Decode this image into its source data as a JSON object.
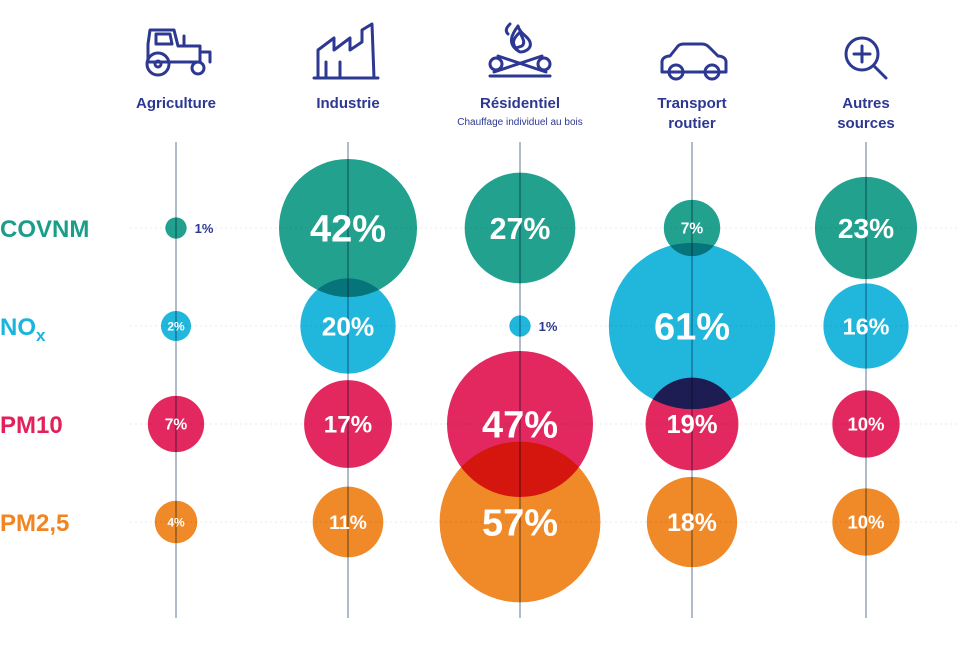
{
  "chart_data": {
    "type": "bubble-matrix",
    "columns": [
      {
        "key": "agriculture",
        "title": "Agriculture",
        "title2": "",
        "subtitle": "",
        "icon": "tractor-icon"
      },
      {
        "key": "industrie",
        "title": "Industrie",
        "title2": "",
        "subtitle": "",
        "icon": "factory-icon"
      },
      {
        "key": "residentiel",
        "title": "Résidentiel",
        "title2": "",
        "subtitle": "Chauffage individuel au bois",
        "icon": "wood-fire-icon"
      },
      {
        "key": "transport",
        "title": "Transport",
        "title2": "routier",
        "subtitle": "",
        "icon": "car-icon"
      },
      {
        "key": "autres",
        "title": "Autres",
        "title2": "sources",
        "subtitle": "",
        "icon": "magnifier-plus-icon"
      }
    ],
    "rows": [
      {
        "key": "covnm",
        "label": "COVNM",
        "subscript": "",
        "color": "#1a9e8a",
        "values": [
          1,
          42,
          27,
          7,
          23
        ],
        "labels": [
          "1%",
          "42%",
          "27%",
          "7%",
          "23%"
        ]
      },
      {
        "key": "nox",
        "label": "NO",
        "subscript": "x",
        "color": "#1ab5dc",
        "values": [
          2,
          20,
          1,
          61,
          16
        ],
        "labels": [
          "2%",
          "20%",
          "1%",
          "61%",
          "16%"
        ]
      },
      {
        "key": "pm10",
        "label": "PM10",
        "subscript": "",
        "color": "#e2215a",
        "values": [
          7,
          17,
          47,
          19,
          10
        ],
        "labels": [
          "7%",
          "17%",
          "47%",
          "19%",
          "10%"
        ]
      },
      {
        "key": "pm25",
        "label": "PM2,5",
        "subscript": "",
        "color": "#f08521",
        "values": [
          4,
          11,
          57,
          18,
          10
        ],
        "labels": [
          "4%",
          "11%",
          "57%",
          "18%",
          "10%"
        ]
      }
    ],
    "colors": {
      "text": "#2c3892",
      "axis": "#7b8fa8"
    }
  }
}
